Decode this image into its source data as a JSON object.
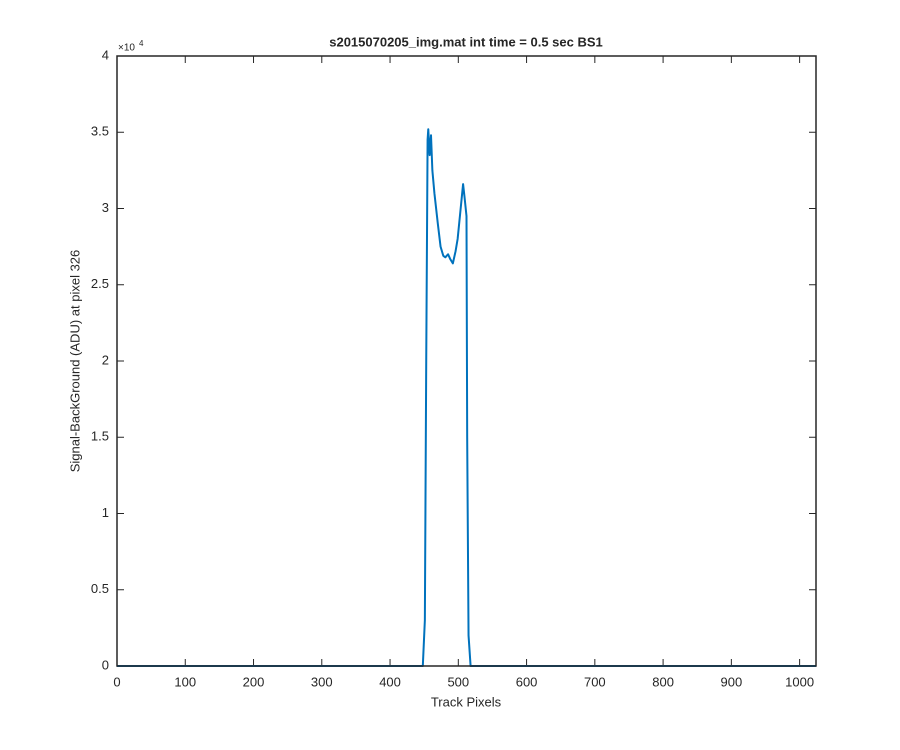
{
  "chart_data": {
    "type": "line",
    "title": "s2015070205_img.mat int time = 0.5 sec   BS1",
    "x_label": "Track Pixels",
    "y_label": "Signal-BackGround (ADU) at pixel 326",
    "y_multiplier": "×10",
    "y_multiplier_exponent": "4",
    "x": [
      0,
      100,
      200,
      300,
      400,
      448,
      451,
      453,
      455,
      456,
      458,
      460,
      462,
      465,
      470,
      474,
      478,
      481,
      485,
      488,
      492,
      496,
      499,
      503,
      507,
      509,
      512,
      513,
      515,
      518,
      600,
      700,
      800,
      900,
      1024
    ],
    "series": [
      {
        "name": "signal",
        "color": "#0072bd",
        "values": [
          0,
          0,
          0,
          0,
          0,
          0,
          3000,
          20000,
          34500,
          35200,
          33500,
          34800,
          32500,
          31000,
          29000,
          27500,
          26900,
          26800,
          27000,
          26700,
          26400,
          27200,
          28000,
          29800,
          31600,
          30800,
          29500,
          15000,
          2000,
          0,
          0,
          0,
          0,
          0,
          0
        ]
      }
    ],
    "xlim": [
      0,
      1024
    ],
    "ylim": [
      0,
      40000
    ],
    "xticks": [
      0,
      100,
      200,
      300,
      400,
      500,
      600,
      700,
      800,
      900,
      1000
    ],
    "yticks": [
      {
        "value": 0,
        "label": "0"
      },
      {
        "value": 5000,
        "label": "0.5"
      },
      {
        "value": 10000,
        "label": "1"
      },
      {
        "value": 15000,
        "label": "1.5"
      },
      {
        "value": 20000,
        "label": "2"
      },
      {
        "value": 25000,
        "label": "2.5"
      },
      {
        "value": 30000,
        "label": "3"
      },
      {
        "value": 35000,
        "label": "3.5"
      },
      {
        "value": 40000,
        "label": "4"
      }
    ],
    "grid": false
  }
}
